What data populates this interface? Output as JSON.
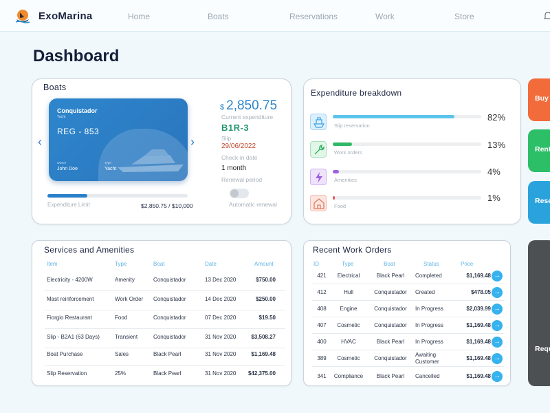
{
  "app": {
    "brand": "ExoMarina"
  },
  "nav": {
    "items": [
      "Home",
      "Boats",
      "Reservations",
      "Work",
      "Store"
    ]
  },
  "page": {
    "title": "Dashboard"
  },
  "boats": {
    "title": "Boats",
    "card": {
      "name": "Conquistador",
      "type_small": "Yacht",
      "reg": "REG - 853",
      "owner_caption": "Owner",
      "owner": "John Doe",
      "type_caption": "Type",
      "type": "Yacht"
    },
    "expenditure_limit_label": "Expenditure Limit",
    "expenditure_value": "$2,850.75 / $10,000",
    "expenditure_fraction": 0.285,
    "currency": "$",
    "current_amount": "2,850.75",
    "current_label": "Current expenditure",
    "slip": "B1R-3",
    "slip_label": "Slip",
    "checkin": "29/06/2022",
    "checkin_label": "Check-in date",
    "renewal": "1 month",
    "renewal_label": "Renewal period",
    "auto_renewal_label": "Automatic renewal",
    "auto_renewal_on": false
  },
  "breakdown": {
    "title": "Expenditure breakdown",
    "items": [
      {
        "label": "Slip reservation",
        "pct": "82%",
        "value": 82,
        "color": "#5cc4ec",
        "icon": "boat-icon"
      },
      {
        "label": "Work orders",
        "pct": "13%",
        "value": 13,
        "color": "#2fb866",
        "icon": "wrench-icon"
      },
      {
        "label": "Amenities",
        "pct": "4%",
        "value": 4,
        "color": "#9b62e0",
        "icon": "lightning-icon"
      },
      {
        "label": "Food",
        "pct": "1%",
        "value": 1,
        "color": "#ef5a5a",
        "icon": "house-icon"
      }
    ]
  },
  "side_buttons": [
    {
      "label": "Buy",
      "color": "#f26b3a"
    },
    {
      "label": "Rent",
      "color": "#2cbf68"
    },
    {
      "label": "Rese",
      "color": "#2aa3dc"
    },
    {
      "label": "Requ",
      "color": "#4d5052"
    }
  ],
  "services": {
    "title": "Services and Amenities",
    "columns": [
      "Item",
      "Type",
      "Boat",
      "Date",
      "Amount"
    ],
    "rows": [
      [
        "Electricity - 4200W",
        "Amenity",
        "Conquistador",
        "13 Dec 2020",
        "$750.00"
      ],
      [
        "Mast reinforcement",
        "Work Order",
        "Conquistador",
        "14 Dec 2020",
        "$250.00"
      ],
      [
        "Fiorgio Restaurant",
        "Food",
        "Conquistador",
        "07 Dec 2020",
        "$19.50"
      ],
      [
        "Slip - B2A1 (63 Days)",
        "Transient",
        "Conquistador",
        "31 Nov 2020",
        "$3,508.27"
      ],
      [
        "Boat Purchase",
        "Sales",
        "Black Pearl",
        "31 Nov 2020",
        "$1,169.48"
      ],
      [
        "Slip Reservation",
        "25%",
        "Black Pearl",
        "31 Nov 2020",
        "$42,375.00"
      ]
    ]
  },
  "work_orders": {
    "title": "Recent Work Orders",
    "columns": [
      "ID",
      "Type",
      "Boat",
      "Status",
      "Price"
    ],
    "rows": [
      [
        "421",
        "Electrical",
        "Black Pearl",
        "Completed",
        "$1,169.48"
      ],
      [
        "412",
        "Hull",
        "Conquistador",
        "Created",
        "$478.05"
      ],
      [
        "408",
        "Engine",
        "Conquistador",
        "In Progress",
        "$2,039.99"
      ],
      [
        "407",
        "Cosmetic",
        "Conquistador",
        "In Progress",
        "$1,169.48"
      ],
      [
        "400",
        "HVAC",
        "Black Pearl",
        "In Progress",
        "$1,169.48"
      ],
      [
        "389",
        "Cosmetic",
        "Conquistador",
        "Awaiting Customer",
        "$1,169.48"
      ],
      [
        "341",
        "Compliance",
        "Black Pearl",
        "Cancelled",
        "$1,169.48"
      ]
    ],
    "action_icon": "arrow-right-icon"
  }
}
